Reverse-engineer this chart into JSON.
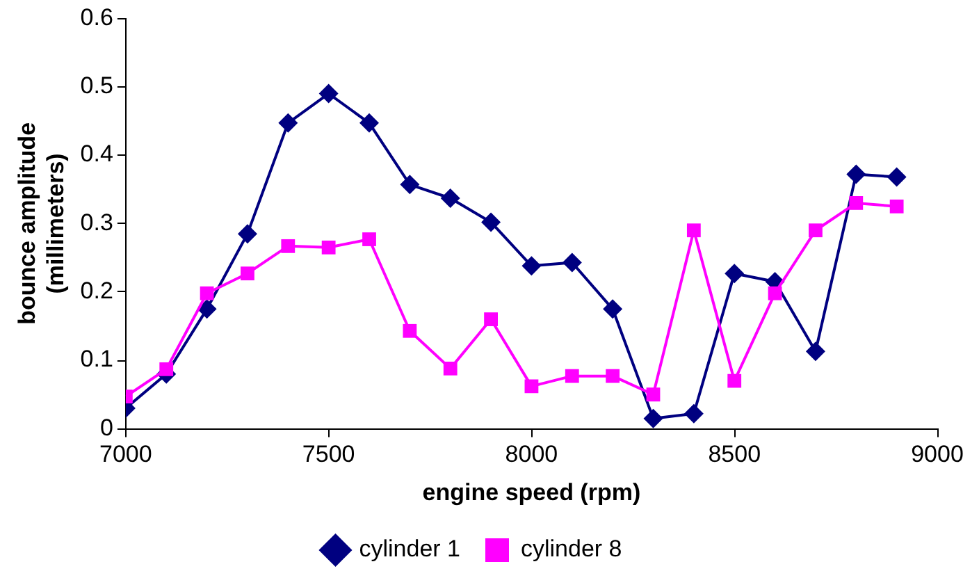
{
  "chart_data": {
    "type": "line",
    "xlabel": "engine speed (rpm)",
    "ylabel": "bounce amplitude (millimeters)",
    "x": [
      7000,
      7100,
      7200,
      7300,
      7400,
      7500,
      7600,
      7700,
      7800,
      7900,
      8000,
      8100,
      8200,
      8300,
      8400,
      8500,
      8600,
      8700,
      8800,
      8900
    ],
    "series": [
      {
        "name": "cylinder 1",
        "color": "#000080",
        "marker": "diamond",
        "values": [
          0.03,
          0.08,
          0.175,
          0.285,
          0.447,
          0.49,
          0.447,
          0.357,
          0.337,
          0.302,
          0.238,
          0.243,
          0.175,
          0.015,
          0.022,
          0.227,
          0.215,
          0.113,
          0.372,
          0.368
        ]
      },
      {
        "name": "cylinder 8",
        "color": "#ff00ff",
        "marker": "square",
        "values": [
          0.047,
          0.087,
          0.198,
          0.227,
          0.267,
          0.265,
          0.277,
          0.143,
          0.088,
          0.16,
          0.062,
          0.077,
          0.077,
          0.05,
          0.29,
          0.07,
          0.198,
          0.29,
          0.33,
          0.325
        ]
      }
    ],
    "xlim": [
      7000,
      9000
    ],
    "xticks": [
      7000,
      7500,
      8000,
      8500,
      9000
    ],
    "ylim": [
      0,
      0.6
    ],
    "yticks": [
      0,
      0.1,
      0.2,
      0.3,
      0.4,
      0.5,
      0.6
    ],
    "grid": false,
    "legend": "bottom",
    "line_style": "solid"
  }
}
